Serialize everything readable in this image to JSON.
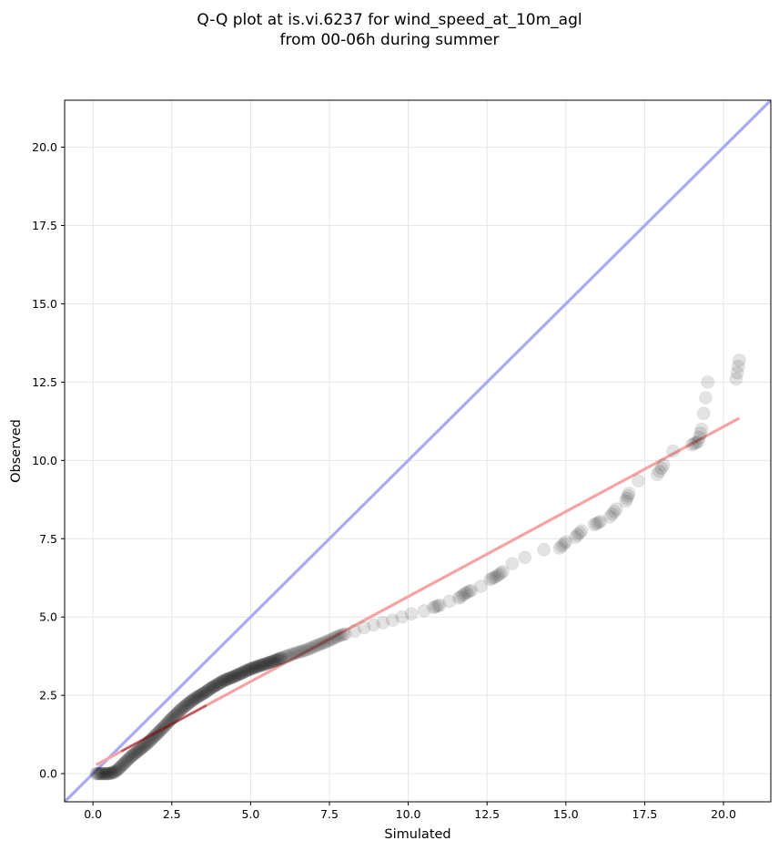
{
  "chart_data": {
    "type": "scatter",
    "title_line1": "Q-Q plot at is.vi.6237 for wind_speed_at_10m_agl",
    "title_line2": "from 00-06h during summer",
    "xlabel": "Simulated",
    "ylabel": "Observed",
    "xlim": [
      -0.9,
      21.5
    ],
    "ylim": [
      -0.9,
      21.5
    ],
    "xticks": [
      0.0,
      2.5,
      5.0,
      7.5,
      10.0,
      12.5,
      15.0,
      17.5,
      20.0
    ],
    "xtick_labels": [
      "0.0",
      "2.5",
      "5.0",
      "7.5",
      "10.0",
      "12.5",
      "15.0",
      "17.5",
      "20.0"
    ],
    "yticks": [
      0.0,
      2.5,
      5.0,
      7.5,
      10.0,
      12.5,
      15.0,
      17.5,
      20.0
    ],
    "ytick_labels": [
      "0.0",
      "2.5",
      "5.0",
      "7.5",
      "10.0",
      "12.5",
      "15.0",
      "17.5",
      "20.0"
    ],
    "grid": true,
    "colors": {
      "points": "#000000",
      "identity_line": "#aaaaf2",
      "fit_line": "#f5a3a5",
      "fit_line_dark": "#8b1a1a"
    },
    "identity_line": {
      "x": [
        -0.9,
        21.5
      ],
      "y": [
        -0.9,
        21.5
      ]
    },
    "fit_line": {
      "x": [
        0.1,
        20.5
      ],
      "y": [
        0.28,
        11.35
      ]
    },
    "quantiles": {
      "x": [
        0.1,
        0.2,
        0.3,
        0.4,
        0.5,
        0.6,
        0.7,
        0.8,
        0.9,
        1.0,
        1.1,
        1.2,
        1.3,
        1.4,
        1.5,
        1.6,
        1.7,
        1.8,
        1.9,
        2.0,
        2.1,
        2.2,
        2.3,
        2.4,
        2.5,
        2.6,
        2.7,
        2.8,
        2.9,
        3.0,
        3.1,
        3.2,
        3.3,
        3.4,
        3.5,
        3.6,
        3.7,
        3.8,
        3.9,
        4.0,
        4.1,
        4.2,
        4.3,
        4.4,
        4.5,
        4.6,
        4.7,
        4.8,
        4.9,
        5.0,
        5.1,
        5.2,
        5.3,
        5.4,
        5.5,
        5.6,
        5.7,
        5.8,
        5.9,
        6.0,
        6.2,
        6.4,
        6.6,
        6.8,
        7.0,
        7.2,
        7.4,
        7.6,
        7.8,
        8.0,
        8.3,
        8.6,
        8.9,
        9.2,
        9.5,
        9.8,
        10.1,
        10.5,
        10.8,
        11.0,
        11.3,
        11.6,
        11.8,
        12.0,
        12.3,
        12.6,
        12.8,
        13.0,
        13.3,
        13.7,
        14.3,
        14.8,
        15.0,
        15.3,
        15.5,
        15.9,
        16.1,
        16.4,
        16.6,
        16.9,
        17.0,
        17.3,
        17.9,
        18.1,
        18.4,
        19.0,
        19.2,
        19.3,
        19.5,
        20.4,
        20.5
      ],
      "y": [
        0.0,
        0.0,
        0.0,
        0.0,
        0.0,
        0.02,
        0.06,
        0.14,
        0.24,
        0.34,
        0.44,
        0.54,
        0.62,
        0.7,
        0.78,
        0.86,
        0.95,
        1.04,
        1.14,
        1.24,
        1.34,
        1.44,
        1.55,
        1.66,
        1.76,
        1.86,
        1.96,
        2.05,
        2.14,
        2.22,
        2.3,
        2.37,
        2.44,
        2.5,
        2.56,
        2.62,
        2.7,
        2.76,
        2.82,
        2.88,
        2.94,
        2.99,
        3.03,
        3.07,
        3.11,
        3.16,
        3.2,
        3.25,
        3.3,
        3.34,
        3.38,
        3.41,
        3.45,
        3.48,
        3.51,
        3.55,
        3.58,
        3.62,
        3.66,
        3.7,
        3.77,
        3.84,
        3.9,
        3.96,
        4.05,
        4.13,
        4.21,
        4.3,
        4.4,
        4.46,
        4.55,
        4.66,
        4.75,
        4.82,
        4.9,
        5.0,
        5.1,
        5.2,
        5.3,
        5.38,
        5.5,
        5.6,
        5.75,
        5.85,
        5.98,
        6.2,
        6.3,
        6.45,
        6.7,
        6.9,
        7.15,
        7.2,
        7.4,
        7.55,
        7.75,
        7.95,
        8.05,
        8.2,
        8.45,
        8.7,
        8.95,
        9.35,
        9.55,
        9.85,
        10.3,
        10.5,
        10.6,
        11.0,
        12.5,
        12.6,
        13.2
      ]
    }
  }
}
